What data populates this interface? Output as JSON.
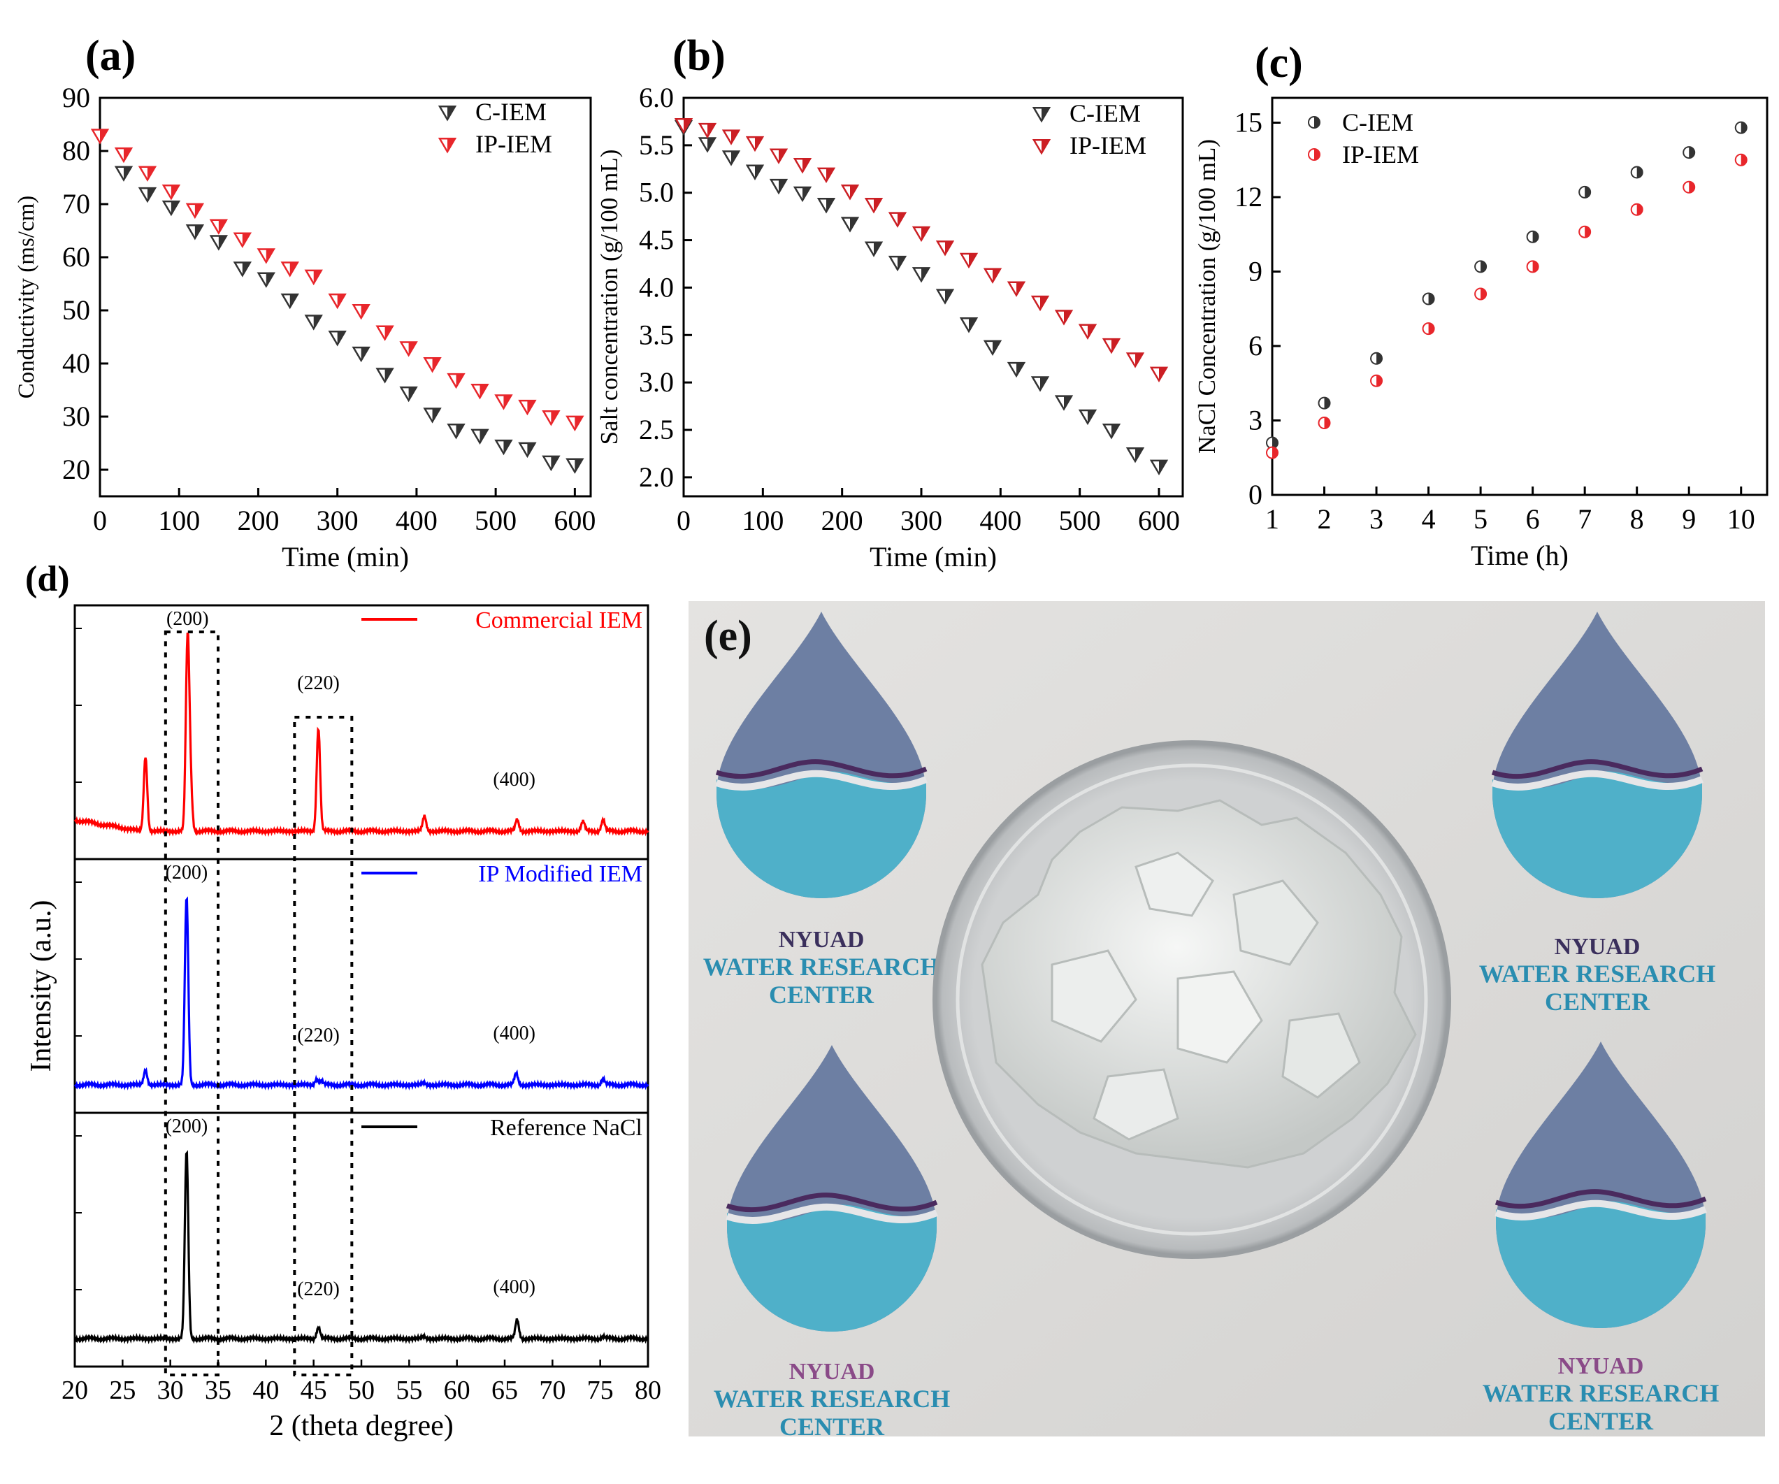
{
  "panels": {
    "a": {
      "label": "(a)"
    },
    "b": {
      "label": "(b)"
    },
    "c": {
      "label": "(c)"
    },
    "d": {
      "label": "(d)"
    },
    "e": {
      "label": "(e)"
    }
  },
  "photo": {
    "logo_text_line1": "NYUAD",
    "logo_text_line2": "WATER RESEARCH",
    "logo_text_line3": "CENTER"
  },
  "chart_data": [
    {
      "id": "a",
      "type": "scatter",
      "xlabel": "Time (min)",
      "ylabel": "Conductivity (ms/cm)",
      "xlim": [
        0,
        620
      ],
      "ylim": [
        15,
        90
      ],
      "xticks": [
        0,
        100,
        200,
        300,
        400,
        500,
        600
      ],
      "yticks": [
        20,
        30,
        40,
        50,
        60,
        70,
        80,
        90
      ],
      "legend": "top-right",
      "series": [
        {
          "name": "C-IEM",
          "marker": "triangle-down",
          "color": "#333333",
          "x": [
            30,
            60,
            90,
            120,
            150,
            180,
            210,
            240,
            270,
            300,
            330,
            360,
            390,
            420,
            450,
            480,
            510,
            540,
            570,
            600
          ],
          "y": [
            76,
            72,
            69.5,
            65,
            63,
            58,
            56,
            52,
            48,
            45,
            42,
            38,
            34.5,
            30.5,
            27.5,
            26.5,
            24.5,
            24,
            21.5,
            21
          ]
        },
        {
          "name": "IP-IEM",
          "marker": "triangle-down",
          "color": "#e8262b",
          "x": [
            0,
            30,
            60,
            90,
            120,
            150,
            180,
            210,
            240,
            270,
            300,
            330,
            360,
            390,
            420,
            450,
            480,
            510,
            540,
            570,
            600
          ],
          "y": [
            83,
            79.5,
            76,
            72.5,
            69,
            66,
            63.5,
            60.5,
            58,
            56.5,
            52,
            50,
            46,
            43,
            40,
            37,
            35,
            33,
            32,
            30,
            29
          ]
        }
      ]
    },
    {
      "id": "b",
      "type": "scatter",
      "xlabel": "Time (min)",
      "ylabel": "Salt concentration (g/100 mL)",
      "xlim": [
        0,
        630
      ],
      "ylim": [
        1.8,
        6.0
      ],
      "xticks": [
        0,
        100,
        200,
        300,
        400,
        500,
        600
      ],
      "yticks": [
        2.0,
        2.5,
        3.0,
        3.5,
        4.0,
        4.5,
        5.0,
        5.5,
        6.0
      ],
      "legend": "top-right",
      "series": [
        {
          "name": "C-IEM",
          "marker": "triangle-down",
          "color": "#333333",
          "x": [
            0,
            30,
            60,
            90,
            120,
            150,
            180,
            210,
            240,
            270,
            300,
            330,
            360,
            390,
            420,
            450,
            480,
            510,
            540,
            570,
            600
          ],
          "y": [
            5.7,
            5.52,
            5.38,
            5.23,
            5.08,
            5.0,
            4.88,
            4.68,
            4.42,
            4.27,
            4.15,
            3.92,
            3.62,
            3.38,
            3.15,
            3.0,
            2.8,
            2.65,
            2.5,
            2.25,
            2.12
          ]
        },
        {
          "name": "IP-IEM",
          "marker": "triangle-down",
          "color": "#cc1f24",
          "x": [
            0,
            30,
            60,
            90,
            120,
            150,
            180,
            210,
            240,
            270,
            300,
            330,
            360,
            390,
            420,
            450,
            480,
            510,
            540,
            570,
            600
          ],
          "y": [
            5.72,
            5.67,
            5.6,
            5.53,
            5.4,
            5.3,
            5.2,
            5.02,
            4.88,
            4.73,
            4.58,
            4.43,
            4.3,
            4.14,
            4.0,
            3.85,
            3.7,
            3.55,
            3.4,
            3.25,
            3.1
          ]
        }
      ]
    },
    {
      "id": "c",
      "type": "scatter",
      "xlabel": "Time (h)",
      "ylabel": "NaCl Concentration (g/100 mL)",
      "xlim": [
        1,
        10.5
      ],
      "ylim": [
        0,
        16
      ],
      "xticks": [
        1,
        2,
        3,
        4,
        5,
        6,
        7,
        8,
        9,
        10
      ],
      "yticks": [
        0,
        3,
        6,
        9,
        12,
        15
      ],
      "legend": "top-left",
      "series": [
        {
          "name": "C-IEM",
          "marker": "circle-half",
          "color": "#333333",
          "x": [
            1,
            2,
            3,
            4,
            5,
            6,
            7,
            8,
            9,
            10
          ],
          "y": [
            2.1,
            3.7,
            5.5,
            7.9,
            9.2,
            10.4,
            12.2,
            13.0,
            13.8,
            14.8
          ]
        },
        {
          "name": "IP-IEM",
          "marker": "circle-half",
          "color": "#e8262b",
          "x": [
            1,
            2,
            3,
            4,
            5,
            6,
            7,
            8,
            9,
            10
          ],
          "y": [
            1.7,
            2.9,
            4.6,
            6.7,
            8.1,
            9.2,
            10.6,
            11.5,
            12.4,
            13.5
          ]
        }
      ]
    },
    {
      "id": "d",
      "type": "line",
      "xlabel": "2 (theta degree)",
      "ylabel": "Intensity (a.u.)",
      "xlim": [
        20,
        80
      ],
      "xticks": [
        20,
        25,
        30,
        35,
        40,
        45,
        50,
        55,
        60,
        65,
        70,
        75,
        80
      ],
      "legend": "top-right",
      "boxes": [
        [
          29.5,
          35
        ],
        [
          43,
          49
        ]
      ],
      "series": [
        {
          "name": "Commercial IEM",
          "color": "#ff0000",
          "peaks": [
            [
              27.4,
              0.4
            ],
            [
              31.8,
              1.0
            ],
            [
              32.1,
              0.25
            ],
            [
              45.5,
              0.55
            ],
            [
              56.6,
              0.08
            ],
            [
              66.3,
              0.06
            ],
            [
              73.2,
              0.05
            ],
            [
              75.3,
              0.06
            ]
          ],
          "annotations": [
            {
              "x": 31.8,
              "text": "(200)"
            },
            {
              "x": 45.5,
              "text": "(220)"
            },
            {
              "x": 66.0,
              "text": "(400)"
            }
          ]
        },
        {
          "name": "IP Modified IEM",
          "color": "#0000ff",
          "peaks": [
            [
              27.4,
              0.08
            ],
            [
              31.7,
              1.0
            ],
            [
              45.3,
              0.03
            ],
            [
              45.8,
              0.02
            ],
            [
              56.5,
              0.01
            ],
            [
              66.2,
              0.06
            ],
            [
              75.3,
              0.03
            ]
          ],
          "annotations": [
            {
              "x": 31.7,
              "text": "(200)"
            },
            {
              "x": 45.5,
              "text": "(220)"
            },
            {
              "x": 66.0,
              "text": "(400)"
            }
          ]
        },
        {
          "name": "Reference NaCl",
          "color": "#000000",
          "peaks": [
            [
              31.7,
              1.0
            ],
            [
              45.5,
              0.06
            ],
            [
              56.5,
              0.01
            ],
            [
              66.3,
              0.1
            ],
            [
              75.3,
              0.01
            ]
          ],
          "annotations": [
            {
              "x": 31.7,
              "text": "(200)"
            },
            {
              "x": 45.5,
              "text": "(220)"
            },
            {
              "x": 66.0,
              "text": "(400)"
            }
          ]
        }
      ]
    }
  ]
}
